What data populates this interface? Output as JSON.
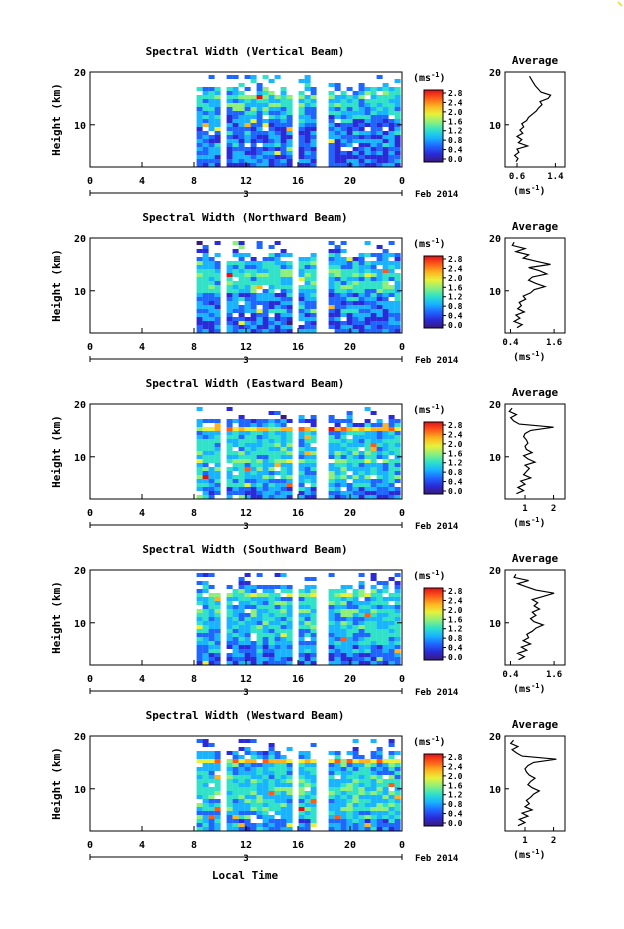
{
  "figure": {
    "xlabel": "Local Time",
    "date_label": "Feb 2014",
    "colorbar_unit": "(ms",
    "colorbar_unit_sup": "-1",
    "colorbar_ticks": [
      "2.8",
      "2.4",
      "2.0",
      "1.6",
      "1.2",
      "0.8",
      "0.4",
      "0.0"
    ],
    "colormap": [
      "#3a1a7a",
      "#2a2ad8",
      "#1f66ff",
      "#18b4ff",
      "#2fe2c8",
      "#8ef07a",
      "#e8f03a",
      "#ffb21e",
      "#ff5a18",
      "#e0101a"
    ]
  },
  "chart_data": [
    {
      "type": "heatmap",
      "title": "Spectral Width (Vertical Beam)",
      "ylabel": "Height (km)",
      "x_ticks": [
        "0",
        "4",
        "8",
        "12",
        "16",
        "20",
        "0"
      ],
      "x_day_label": "3",
      "y_ticks": [
        "20",
        "10"
      ],
      "xlim_hours": [
        0,
        24
      ],
      "ylim_km": [
        2,
        20
      ],
      "data_start_hour": 8.2,
      "gaps_hours": [
        [
          9.6,
          10.2
        ],
        [
          15.3,
          15.8
        ],
        [
          17.4,
          18.0
        ]
      ],
      "profile": {
        "title": "Average",
        "xlabel": "(ms",
        "xlabel_sup": "-1",
        "x_ticks": [
          "0.6",
          "1.4"
        ],
        "x_tick_values": [
          0.6,
          1.4
        ],
        "xlim": [
          0.35,
          1.6
        ],
        "y_ticks": [
          "20",
          "10"
        ],
        "height_km": [
          3,
          3.6,
          4.2,
          4.8,
          5.4,
          6,
          6.6,
          7.2,
          7.8,
          8.4,
          9,
          9.6,
          10.2,
          10.8,
          11.4,
          12,
          12.6,
          13.2,
          13.8,
          14.4,
          15,
          15.6,
          16.2,
          16.8,
          17.4,
          18,
          18.6,
          19.2
        ],
        "value_ms": [
          0.58,
          0.62,
          0.55,
          0.64,
          0.6,
          0.82,
          0.63,
          0.7,
          0.6,
          0.72,
          0.66,
          0.74,
          0.7,
          0.8,
          0.84,
          0.92,
          1.0,
          1.05,
          1.12,
          1.08,
          1.25,
          1.3,
          1.1,
          1.04,
          0.98,
          0.94,
          0.9,
          0.86
        ]
      }
    },
    {
      "type": "heatmap",
      "title": "Spectral Width (Northward Beam)",
      "ylabel": "Height (km)",
      "x_ticks": [
        "0",
        "4",
        "8",
        "12",
        "16",
        "20",
        "0"
      ],
      "x_day_label": "3",
      "y_ticks": [
        "20",
        "10"
      ],
      "xlim_hours": [
        0,
        24
      ],
      "ylim_km": [
        2,
        20
      ],
      "data_start_hour": 8.2,
      "gaps_hours": [
        [
          9.6,
          10.2
        ],
        [
          15.3,
          15.8
        ],
        [
          17.4,
          18.0
        ]
      ],
      "profile": {
        "title": "Average",
        "xlabel": "(ms",
        "xlabel_sup": "-1",
        "x_ticks": [
          "0.4",
          "1.6"
        ],
        "x_tick_values": [
          0.4,
          1.6
        ],
        "xlim": [
          0.25,
          1.9
        ],
        "y_ticks": [
          "20",
          "10"
        ],
        "height_km": [
          3,
          3.6,
          4.2,
          4.8,
          5.4,
          6,
          6.6,
          7.2,
          7.8,
          8.4,
          9,
          9.6,
          10.2,
          10.8,
          11.4,
          12,
          12.6,
          13.2,
          13.8,
          14.4,
          15,
          15.6,
          16.2,
          16.8,
          17.4,
          18,
          18.6,
          19.2
        ],
        "value_ms": [
          0.58,
          0.72,
          0.5,
          0.66,
          0.55,
          0.78,
          0.6,
          0.7,
          0.64,
          0.82,
          0.75,
          0.95,
          1.05,
          1.35,
          1.1,
          0.9,
          1.0,
          1.4,
          1.2,
          0.9,
          1.5,
          1.1,
          0.75,
          0.9,
          0.55,
          0.8,
          0.45,
          0.5
        ]
      }
    },
    {
      "type": "heatmap",
      "title": "Spectral Width (Eastward Beam)",
      "ylabel": "Height (km)",
      "x_ticks": [
        "0",
        "4",
        "8",
        "12",
        "16",
        "20",
        "0"
      ],
      "x_day_label": "3",
      "y_ticks": [
        "20",
        "10"
      ],
      "xlim_hours": [
        0,
        24
      ],
      "ylim_km": [
        2,
        20
      ],
      "data_start_hour": 8.2,
      "gaps_hours": [
        [
          9.6,
          10.2
        ],
        [
          15.3,
          15.8
        ],
        [
          17.4,
          18.0
        ]
      ],
      "profile": {
        "title": "Average",
        "xlabel": "(ms",
        "xlabel_sup": "-1",
        "x_ticks": [
          "1",
          "2"
        ],
        "x_tick_values": [
          1,
          2
        ],
        "xlim": [
          0.3,
          2.4
        ],
        "y_ticks": [
          "20",
          "10"
        ],
        "height_km": [
          3,
          3.6,
          4.2,
          4.8,
          5.4,
          6,
          6.6,
          7.2,
          7.8,
          8.4,
          9,
          9.6,
          10.2,
          10.8,
          11.4,
          12,
          12.6,
          13.2,
          13.8,
          14.4,
          15,
          15.6,
          16.2,
          16.8,
          17.4,
          18,
          18.6,
          19.2
        ],
        "value_ms": [
          0.7,
          0.95,
          0.75,
          1.0,
          0.85,
          1.2,
          0.95,
          1.05,
          1.15,
          1.0,
          1.35,
          1.1,
          0.95,
          1.25,
          1.05,
          1.0,
          1.1,
          1.05,
          0.95,
          1.0,
          1.2,
          2.0,
          0.8,
          0.6,
          0.5,
          0.7,
          0.45,
          0.55
        ]
      }
    },
    {
      "type": "heatmap",
      "title": "Spectral Width (Southward Beam)",
      "ylabel": "Height (km)",
      "x_ticks": [
        "0",
        "4",
        "8",
        "12",
        "16",
        "20",
        "0"
      ],
      "x_day_label": "3",
      "y_ticks": [
        "20",
        "10"
      ],
      "xlim_hours": [
        0,
        24
      ],
      "ylim_km": [
        2,
        20
      ],
      "data_start_hour": 8.2,
      "gaps_hours": [
        [
          9.6,
          10.2
        ],
        [
          15.3,
          15.8
        ],
        [
          17.4,
          18.0
        ]
      ],
      "profile": {
        "title": "Average",
        "xlabel": "(ms",
        "xlabel_sup": "-1",
        "x_ticks": [
          "0.4",
          "1.6"
        ],
        "x_tick_values": [
          0.4,
          1.6
        ],
        "xlim": [
          0.25,
          1.9
        ],
        "y_ticks": [
          "20",
          "10"
        ],
        "height_km": [
          3,
          3.6,
          4.2,
          4.8,
          5.4,
          6,
          6.6,
          7.2,
          7.8,
          8.4,
          9,
          9.6,
          10.2,
          10.8,
          11.4,
          12,
          12.6,
          13.2,
          13.8,
          14.4,
          15,
          15.6,
          16.2,
          16.8,
          17.4,
          18,
          18.6,
          19.2
        ],
        "value_ms": [
          0.62,
          0.78,
          0.6,
          0.85,
          0.7,
          0.95,
          0.75,
          0.9,
          0.85,
          1.0,
          1.1,
          1.3,
          1.05,
          0.95,
          1.1,
          1.0,
          1.2,
          1.05,
          1.15,
          1.0,
          1.3,
          1.6,
          1.1,
          0.85,
          0.6,
          0.9,
          0.5,
          0.55
        ]
      }
    },
    {
      "type": "heatmap",
      "title": "Spectral Width (Westward Beam)",
      "ylabel": "Height (km)",
      "x_ticks": [
        "0",
        "4",
        "8",
        "12",
        "16",
        "20",
        "0"
      ],
      "x_day_label": "3",
      "y_ticks": [
        "20",
        "10"
      ],
      "xlim_hours": [
        0,
        24
      ],
      "ylim_km": [
        2,
        20
      ],
      "data_start_hour": 8.2,
      "gaps_hours": [
        [
          9.6,
          10.2
        ],
        [
          15.3,
          15.8
        ],
        [
          17.4,
          18.0
        ]
      ],
      "profile": {
        "title": "Average",
        "xlabel": "(ms",
        "xlabel_sup": "-1",
        "x_ticks": [
          "1",
          "2"
        ],
        "x_tick_values": [
          1,
          2
        ],
        "xlim": [
          0.3,
          2.4
        ],
        "y_ticks": [
          "20",
          "10"
        ],
        "height_km": [
          3,
          3.6,
          4.2,
          4.8,
          5.4,
          6,
          6.6,
          7.2,
          7.8,
          8.4,
          9,
          9.6,
          10.2,
          10.8,
          11.4,
          12,
          12.6,
          13.2,
          13.8,
          14.4,
          15,
          15.6,
          16.2,
          16.8,
          17.4,
          18,
          18.6,
          19.2
        ],
        "value_ms": [
          0.75,
          1.0,
          0.8,
          1.1,
          0.9,
          1.25,
          1.0,
          1.15,
          1.05,
          1.2,
          1.3,
          1.5,
          1.25,
          1.1,
          1.2,
          1.35,
          1.15,
          1.05,
          1.0,
          1.1,
          1.3,
          2.1,
          0.9,
          0.7,
          0.55,
          0.75,
          0.5,
          0.6
        ]
      }
    }
  ]
}
